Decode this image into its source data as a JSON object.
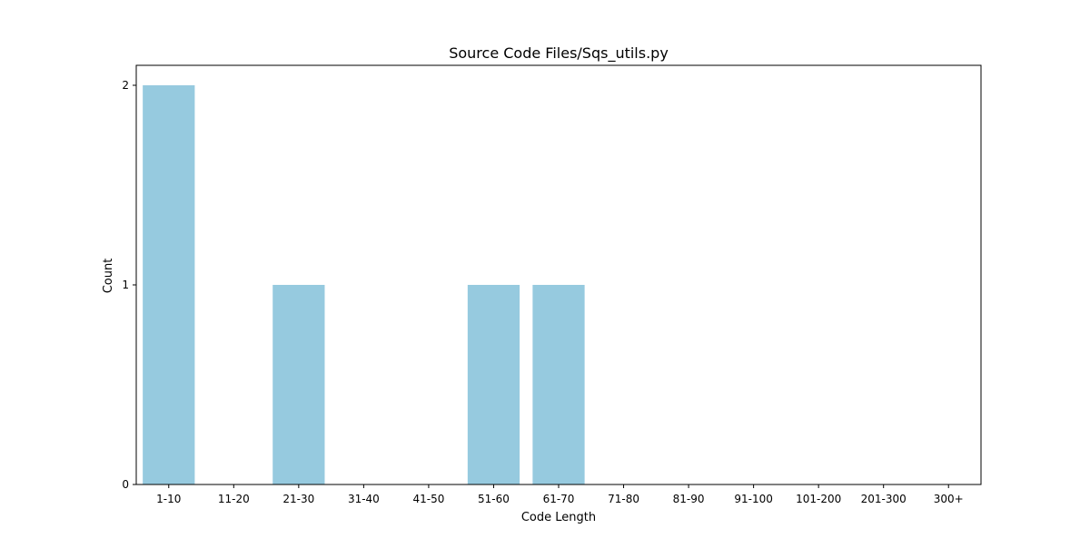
{
  "chart_data": {
    "type": "bar",
    "title": "Source Code Files/Sqs_utils.py",
    "xlabel": "Code Length",
    "ylabel": "Count",
    "categories": [
      "1-10",
      "11-20",
      "21-30",
      "31-40",
      "41-50",
      "51-60",
      "61-70",
      "71-80",
      "81-90",
      "91-100",
      "101-200",
      "201-300",
      "300+"
    ],
    "values": [
      2,
      0,
      1,
      0,
      0,
      1,
      1,
      0,
      0,
      0,
      0,
      0,
      0
    ],
    "ylim": [
      0,
      2.1
    ],
    "yticks": [
      0,
      1,
      2
    ],
    "bar_color": "#96cadf",
    "grid": false,
    "legend": "none"
  }
}
